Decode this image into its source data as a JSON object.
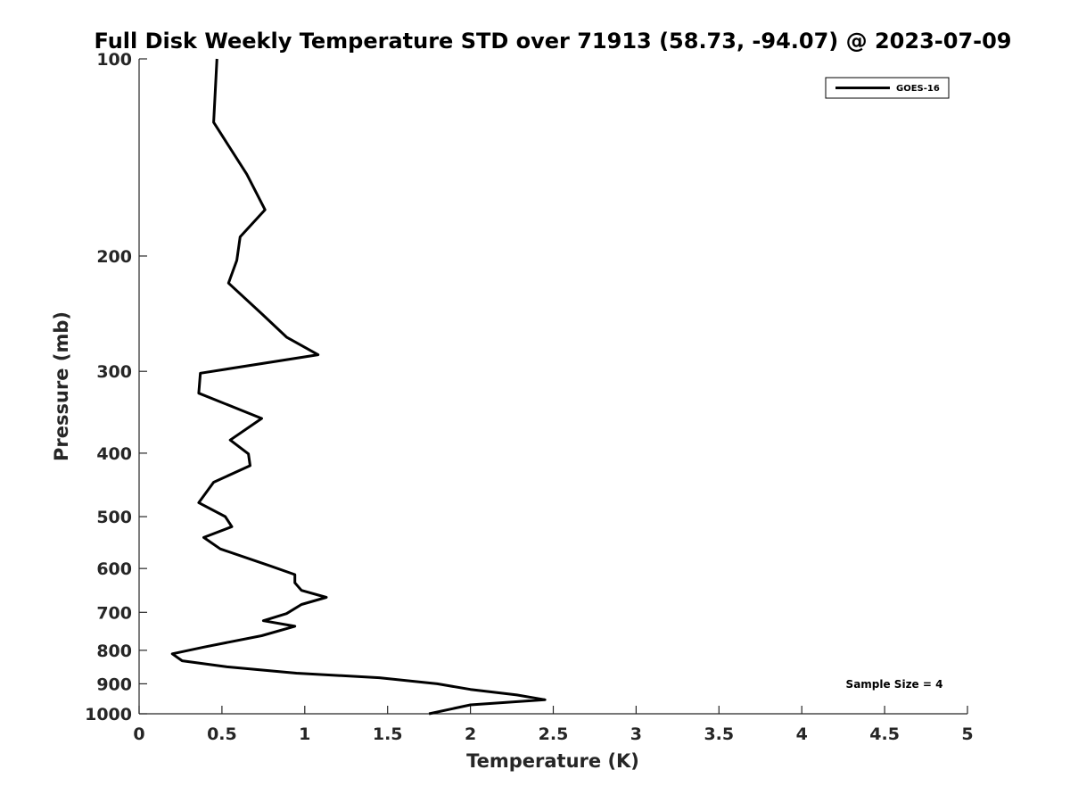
{
  "chart_data": {
    "type": "line",
    "title": "Full Disk Weekly Temperature STD over 71913 (58.73, -94.07) @ 2023-07-09",
    "xlabel": "Temperature (K)",
    "ylabel": "Pressure (mb)",
    "xlim": [
      0,
      5
    ],
    "ylim": [
      1000,
      100
    ],
    "y_scale": "log",
    "y_reversed": true,
    "grid": false,
    "legend_position": "top-right",
    "x_ticks": [
      "0",
      "0.5",
      "1",
      "1.5",
      "2",
      "2.5",
      "3",
      "3.5",
      "4",
      "4.5",
      "5"
    ],
    "y_ticks": [
      "100",
      "200",
      "300",
      "400",
      "500",
      "600",
      "700",
      "800",
      "900",
      "1000"
    ],
    "annotation": "Sample Size = 4",
    "series": [
      {
        "name": "GOES-16",
        "color": "#000000",
        "points": [
          [
            0.47,
            100
          ],
          [
            0.45,
            125
          ],
          [
            0.65,
            150
          ],
          [
            0.76,
            170
          ],
          [
            0.61,
            187
          ],
          [
            0.59,
            203
          ],
          [
            0.54,
            220
          ],
          [
            0.74,
            245
          ],
          [
            0.89,
            266
          ],
          [
            1.08,
            283
          ],
          [
            0.37,
            302
          ],
          [
            0.36,
            324
          ],
          [
            0.74,
            354
          ],
          [
            0.55,
            382
          ],
          [
            0.66,
            401
          ],
          [
            0.67,
            418
          ],
          [
            0.45,
            443
          ],
          [
            0.36,
            476
          ],
          [
            0.52,
            500
          ],
          [
            0.56,
            518
          ],
          [
            0.39,
            538
          ],
          [
            0.49,
            560
          ],
          [
            0.77,
            592
          ],
          [
            0.94,
            613
          ],
          [
            0.94,
            631
          ],
          [
            0.98,
            648
          ],
          [
            1.13,
            664
          ],
          [
            0.98,
            681
          ],
          [
            0.89,
            703
          ],
          [
            0.75,
            721
          ],
          [
            0.94,
            735
          ],
          [
            0.74,
            760
          ],
          [
            0.39,
            791
          ],
          [
            0.2,
            810
          ],
          [
            0.26,
            830
          ],
          [
            0.53,
            848
          ],
          [
            0.95,
            867
          ],
          [
            1.45,
            881
          ],
          [
            1.8,
            900
          ],
          [
            2.0,
            918
          ],
          [
            2.28,
            936
          ],
          [
            2.45,
            952
          ],
          [
            2.0,
            969
          ],
          [
            1.75,
            1000
          ]
        ]
      }
    ]
  }
}
